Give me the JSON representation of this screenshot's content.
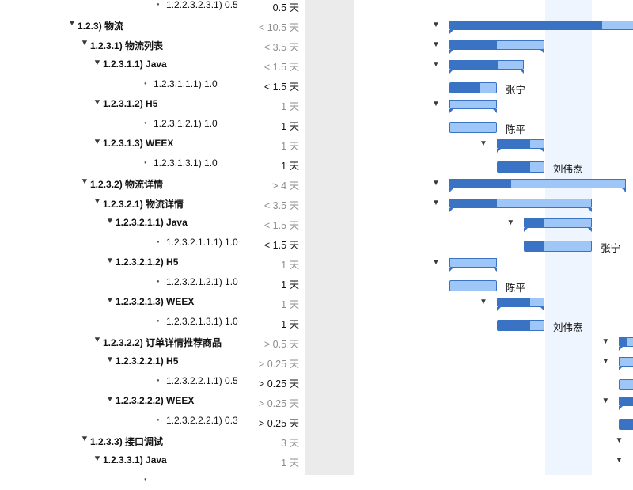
{
  "outline": {
    "rows": [
      {
        "level": 4,
        "kind": "leaf",
        "label": "1.2.2.3.2.3.1)  0.5",
        "duration": "0.5 天",
        "dur_style": "black"
      },
      {
        "level": 0,
        "kind": "group",
        "label": "1.2.3)  物流",
        "duration": "< 10.5 天",
        "dur_style": "gray"
      },
      {
        "level": 1,
        "kind": "group",
        "label": "1.2.3.1)  物流列表",
        "duration": "< 3.5 天",
        "dur_style": "gray"
      },
      {
        "level": 2,
        "kind": "group",
        "label": "1.2.3.1.1)  Java",
        "duration": "< 1.5 天",
        "dur_style": "gray"
      },
      {
        "level": 3,
        "kind": "leaf",
        "label": "1.2.3.1.1.1)  1.0",
        "duration": "< 1.5 天",
        "dur_style": "black"
      },
      {
        "level": 2,
        "kind": "group",
        "label": "1.2.3.1.2)  H5",
        "duration": "1 天",
        "dur_style": "gray"
      },
      {
        "level": 3,
        "kind": "leaf",
        "label": "1.2.3.1.2.1)  1.0",
        "duration": "1 天",
        "dur_style": "black"
      },
      {
        "level": 2,
        "kind": "group",
        "label": "1.2.3.1.3)  WEEX",
        "duration": "1 天",
        "dur_style": "gray"
      },
      {
        "level": 3,
        "kind": "leaf",
        "label": "1.2.3.1.3.1)  1.0",
        "duration": "1 天",
        "dur_style": "black"
      },
      {
        "level": 1,
        "kind": "group",
        "label": "1.2.3.2)  物流详情",
        "duration": "> 4 天",
        "dur_style": "gray"
      },
      {
        "level": 2,
        "kind": "group",
        "label": "1.2.3.2.1)  物流详情",
        "duration": "< 3.5 天",
        "dur_style": "gray"
      },
      {
        "level": 3,
        "kind": "group",
        "label": "1.2.3.2.1.1)  Java",
        "duration": "< 1.5 天",
        "dur_style": "gray"
      },
      {
        "level": 4,
        "kind": "leaf",
        "label": "1.2.3.2.1.1.1)  1.0",
        "duration": "< 1.5 天",
        "dur_style": "black"
      },
      {
        "level": 3,
        "kind": "group",
        "label": "1.2.3.2.1.2)  H5",
        "duration": "1 天",
        "dur_style": "gray"
      },
      {
        "level": 4,
        "kind": "leaf",
        "label": "1.2.3.2.1.2.1)  1.0",
        "duration": "1 天",
        "dur_style": "black"
      },
      {
        "level": 3,
        "kind": "group",
        "label": "1.2.3.2.1.3)  WEEX",
        "duration": "1 天",
        "dur_style": "gray"
      },
      {
        "level": 4,
        "kind": "leaf",
        "label": "1.2.3.2.1.3.1)  1.0",
        "duration": "1 天",
        "dur_style": "black"
      },
      {
        "level": 2,
        "kind": "group",
        "label": "1.2.3.2.2)  订单详情推荐商品",
        "duration": "> 0.5 天",
        "dur_style": "gray"
      },
      {
        "level": 3,
        "kind": "group",
        "label": "1.2.3.2.2.1)  H5",
        "duration": "> 0.25 天",
        "dur_style": "gray"
      },
      {
        "level": 4,
        "kind": "leaf",
        "label": "1.2.3.2.2.1.1)  0.5",
        "duration": "> 0.25 天",
        "dur_style": "black"
      },
      {
        "level": 3,
        "kind": "group",
        "label": "1.2.3.2.2.2)  WEEX",
        "duration": "> 0.25 天",
        "dur_style": "gray"
      },
      {
        "level": 4,
        "kind": "leaf",
        "label": "1.2.3.2.2.2.1)  0.3",
        "duration": "> 0.25 天",
        "dur_style": "black"
      },
      {
        "level": 1,
        "kind": "group",
        "label": "1.2.3.3)  接口调试",
        "duration": "3 天",
        "dur_style": "gray"
      },
      {
        "level": 2,
        "kind": "group",
        "label": "1.2.3.3.1)  Java",
        "duration": "1 天",
        "dur_style": "gray"
      },
      {
        "level": 3,
        "kind": "leaf",
        "label": "",
        "duration": "",
        "dur_style": "black"
      }
    ]
  },
  "gantt": {
    "bars": [
      null,
      {
        "type": "summary",
        "start": 0,
        "end": 20,
        "progress": 0.28
      },
      {
        "type": "summary",
        "start": 0,
        "end": 3.5,
        "progress": 0.5
      },
      {
        "type": "summary",
        "start": 0,
        "end": 2.75,
        "progress": 0.65
      },
      {
        "type": "task",
        "start": 0,
        "end": 1.75,
        "progress": 0.65,
        "assignee": "张宁"
      },
      {
        "type": "summary",
        "start": 0,
        "end": 1.75,
        "progress": 0
      },
      {
        "type": "task",
        "start": 0,
        "end": 1.75,
        "progress": 0,
        "assignee": "陈平"
      },
      {
        "type": "summary",
        "start": 1.75,
        "end": 3.5,
        "progress": 0.7
      },
      {
        "type": "task",
        "start": 1.75,
        "end": 3.5,
        "progress": 0.7,
        "assignee": "刘伟焘"
      },
      {
        "type": "summary",
        "start": 0,
        "end": 6.5,
        "progress": 0.35
      },
      {
        "type": "summary",
        "start": 0,
        "end": 5.25,
        "progress": 0.33
      },
      {
        "type": "summary",
        "start": 2.75,
        "end": 5.25,
        "progress": 0.3
      },
      {
        "type": "task",
        "start": 2.75,
        "end": 5.25,
        "progress": 0.3,
        "assignee": "张宁"
      },
      {
        "type": "summary",
        "start": 0,
        "end": 1.75,
        "progress": 0
      },
      {
        "type": "task",
        "start": 0,
        "end": 1.75,
        "progress": 0,
        "assignee": "陈平"
      },
      {
        "type": "summary",
        "start": 1.75,
        "end": 3.5,
        "progress": 0.7
      },
      {
        "type": "task",
        "start": 1.75,
        "end": 3.5,
        "progress": 0.7,
        "assignee": "刘伟焘"
      },
      {
        "type": "summary",
        "start": 6.25,
        "end": 7,
        "progress": 0.4
      },
      {
        "type": "summary",
        "start": 6.25,
        "end": 7,
        "progress": 0
      },
      {
        "type": "task",
        "start": 6.25,
        "end": 7,
        "progress": 0
      },
      {
        "type": "summary",
        "start": 6.25,
        "end": 7,
        "progress": 1
      },
      {
        "type": "task",
        "start": 6.25,
        "end": 7,
        "progress": 1
      },
      {
        "type": "summary_arrow",
        "start": 6.75,
        "end": 7,
        "progress": 0
      },
      {
        "type": "summary_arrow",
        "start": 6.75,
        "end": 7,
        "progress": 0
      },
      null
    ]
  },
  "colors": {
    "bar_fill": "#9ec6f6",
    "bar_progress": "#3a73c4",
    "today_band": "#eef5fe",
    "divider": "#ebebeb",
    "duration_gray": "#8c8c8c"
  }
}
